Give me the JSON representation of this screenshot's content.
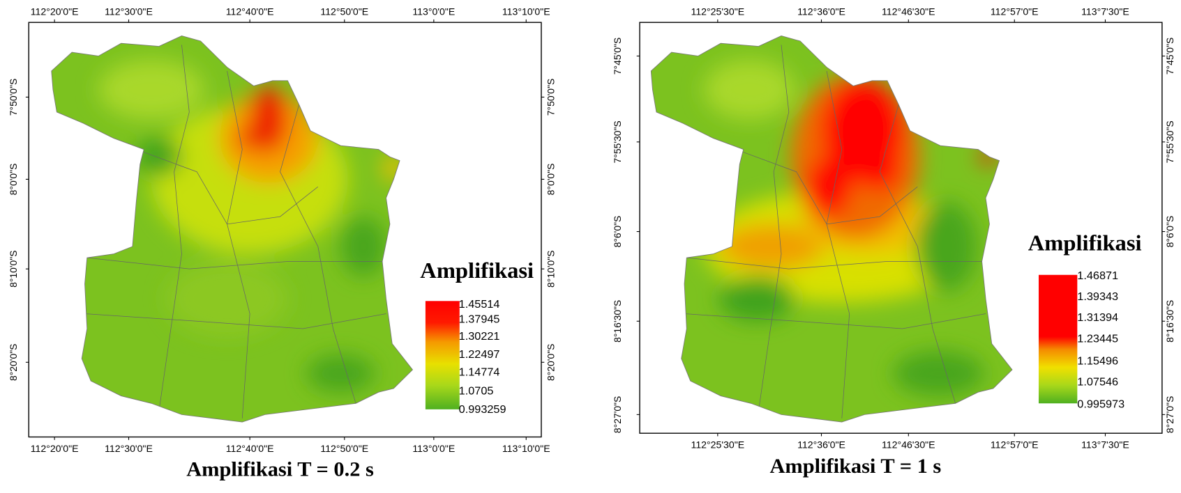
{
  "panels": [
    {
      "x_ticks": [
        "112°20'0\"E",
        "112°30'0\"E",
        "112°40'0\"E",
        "112°50'0\"E",
        "113°0'0\"E",
        "113°10'0\"E"
      ],
      "y_ticks": [
        "7°50'0\"S",
        "8°0'0\"S",
        "8°10'0\"S",
        "8°20'0\"S"
      ],
      "legend": {
        "title": "Amplifikasi",
        "labels": [
          "1.45514",
          "1.37945",
          "1.30221",
          "1.22497",
          "1.14774",
          "1.0705",
          "0.993259"
        ]
      },
      "caption": "Amplifikasi T = 0.2 s"
    },
    {
      "x_ticks": [
        "112°25'30\"E",
        "112°36'0\"E",
        "112°46'30\"E",
        "112°57'0\"E",
        "113°7'30\"E"
      ],
      "y_ticks": [
        "7°45'0\"S",
        "7°55'30\"S",
        "8°6'0\"S",
        "8°16'30\"S",
        "8°27'0\"S"
      ],
      "legend": {
        "title": "Amplifikasi",
        "labels": [
          "1.46871",
          "1.39343",
          "1.31394",
          "1.23445",
          "1.15496",
          "1.07546",
          "0.995973"
        ]
      },
      "caption": "Amplifikasi T = 1 s"
    }
  ]
}
